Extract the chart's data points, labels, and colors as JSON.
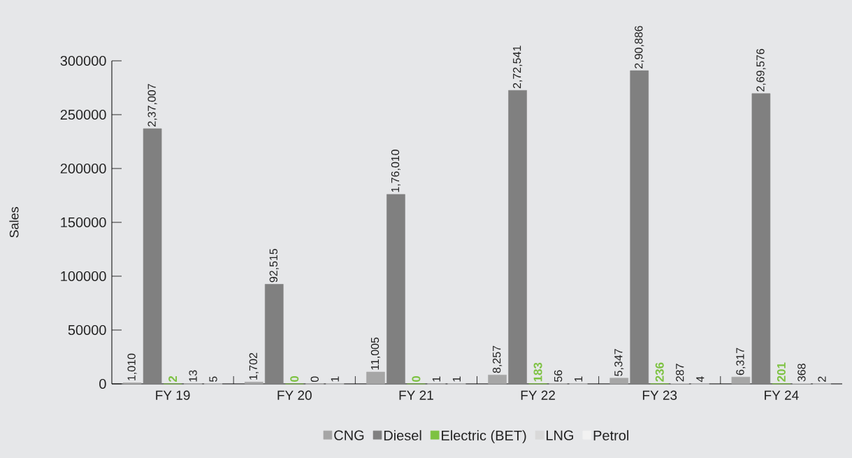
{
  "chart_data": {
    "type": "bar",
    "ylabel": "Sales",
    "categories": [
      "FY 19",
      "FY 20",
      "FY 21",
      "FY 22",
      "FY 23",
      "FY 24"
    ],
    "ylim": [
      0,
      300000
    ],
    "yticks": [
      0,
      50000,
      100000,
      150000,
      200000,
      250000,
      300000
    ],
    "legend": "bottom",
    "series": [
      {
        "name": "CNG",
        "color": "#a6a6a6",
        "values": [
          1010,
          1702,
          11005,
          8257,
          5347,
          6317
        ],
        "value_labels": [
          "1,010",
          "1,702",
          "11,005",
          "8,257",
          "5,347",
          "6,317"
        ]
      },
      {
        "name": "Diesel",
        "color": "#808080",
        "values": [
          237007,
          92515,
          176010,
          272541,
          290886,
          269576
        ],
        "value_labels": [
          "2,37,007",
          "92,515",
          "1,76,010",
          "2,72,541",
          "2,90,886",
          "2,69,576"
        ]
      },
      {
        "name": "Electric (BET)",
        "color": "#7dc242",
        "values": [
          2,
          0,
          0,
          183,
          236,
          201
        ],
        "value_labels": [
          "2",
          "0",
          "0",
          "183",
          "236",
          "201"
        ]
      },
      {
        "name": "LNG",
        "color": "#d9d9d9",
        "values": [
          13,
          0,
          1,
          56,
          287,
          368
        ],
        "value_labels": [
          "13",
          "0",
          "1",
          "56",
          "287",
          "368"
        ]
      },
      {
        "name": "Petrol",
        "color": "#f2f2f2",
        "values": [
          5,
          1,
          1,
          1,
          4,
          2
        ],
        "value_labels": [
          "5",
          "1",
          "1",
          "1",
          "4",
          "2"
        ]
      }
    ]
  }
}
